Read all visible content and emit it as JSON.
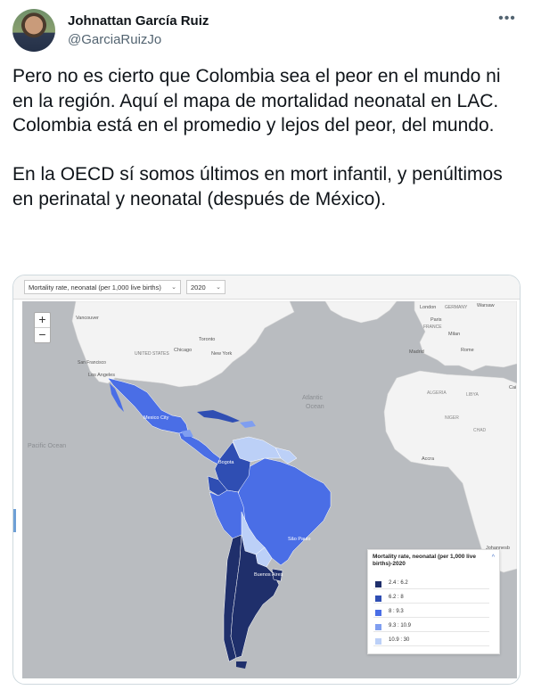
{
  "author": {
    "name": "Johnattan García Ruiz",
    "handle": "@GarciaRuizJo"
  },
  "icons": {
    "more": "more-dots-icon",
    "zoom_in": "plus-icon",
    "zoom_out": "minus-icon",
    "collapse": "chevron-up-icon"
  },
  "tweet": {
    "text": "Pero no es cierto que Colombia sea el peor en el mundo ni en la región. Aquí el mapa de mortalidad neonatal en LAC. Colombia está en el promedio y lejos del peor, del mundo.\n\nEn la OECD sí somos últimos en mort infantil, y penúltimos en perinatal y neonatal (después de México)."
  },
  "map": {
    "indicator_select": "Mortality rate, neonatal (per 1,000 live births)",
    "year_select": "2020",
    "zoom_in": "+",
    "zoom_out": "−",
    "labels": {
      "vancouver": "Vancouver",
      "united_states": "UNITED STATES",
      "chicago": "Chicago",
      "toronto": "Toronto",
      "new_york": "New York",
      "san_francisco": "San Francisco",
      "los_angeles": "Los Angeles",
      "atlantic_ocean_1": "Atlantic",
      "atlantic_ocean_2": "Ocean",
      "pacific_ocean": "Pacific Ocean",
      "mexico_city": "Mexico City",
      "bogota": "Bogota",
      "sao_paulo": "São Paulo",
      "buenos_aires": "Buenos Aires",
      "london": "London",
      "germany": "GERMANY",
      "warsaw": "Warsaw",
      "paris": "Paris",
      "france": "FRANCE",
      "milan": "Milan",
      "madrid": "Madrid",
      "rome": "Rome",
      "algeria": "ALGERIA",
      "libya": "LIBYA",
      "niger": "NIGER",
      "chad": "CHAD",
      "accra": "Accra",
      "cairo": "Cai",
      "johannesburg": "Johannesb"
    },
    "legend": {
      "title": "Mortality rate, neonatal (per 1,000 live births)-2020",
      "collapse": "^",
      "classes": [
        {
          "label": "2.4 : 6.2",
          "color": "#1f2f6b"
        },
        {
          "label": "6.2 : 8",
          "color": "#2f4eb3"
        },
        {
          "label": "8 : 9.3",
          "color": "#4a6ee6"
        },
        {
          "label": "9.3 : 10.9",
          "color": "#7f9ef0"
        },
        {
          "label": "10.9 : 30",
          "color": "#bcd0f7"
        }
      ]
    }
  }
}
